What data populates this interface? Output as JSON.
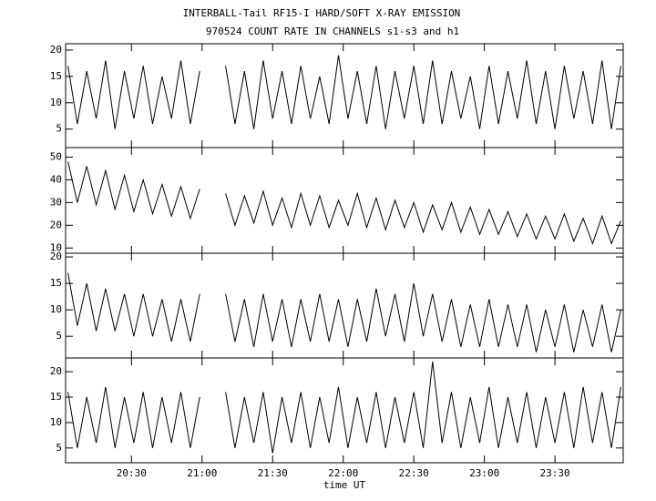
{
  "title": "INTERBALL-Tail RF15-I HARD/SOFT X-RAY EMISSION",
  "subtitle": "970524  COUNT RATE IN CHANNELS s1-s3 and h1",
  "xlabel": "time UT",
  "chart_data": [
    {
      "type": "line",
      "color": "#000000",
      "xlim": [
        1202,
        1439
      ],
      "ylim": [
        1.5,
        21.2
      ],
      "yticks": [
        5,
        10,
        15,
        20
      ],
      "x": [
        1203,
        1207,
        1211,
        1215,
        1219,
        1223,
        1227,
        1231,
        1235,
        1239,
        1243,
        1247,
        1251,
        1255,
        1259,
        1264,
        1270,
        1274,
        1278,
        1282,
        1286,
        1290,
        1294,
        1298,
        1302,
        1306,
        1310,
        1314,
        1318,
        1322,
        1326,
        1330,
        1334,
        1338,
        1342,
        1346,
        1350,
        1354,
        1358,
        1362,
        1366,
        1370,
        1374,
        1378,
        1382,
        1386,
        1390,
        1394,
        1398,
        1402,
        1406,
        1410,
        1414,
        1418,
        1422,
        1426,
        1430,
        1434,
        1438
      ],
      "values": [
        17,
        6,
        16,
        7,
        18,
        5,
        16,
        7,
        17,
        6,
        15,
        7,
        18,
        6,
        16,
        null,
        17,
        6,
        16,
        5,
        18,
        7,
        16,
        6,
        17,
        7,
        15,
        6,
        19,
        7,
        16,
        6,
        17,
        5,
        16,
        7,
        17,
        6,
        18,
        6,
        16,
        7,
        15,
        5,
        17,
        6,
        16,
        7,
        18,
        6,
        16,
        5,
        17,
        7,
        16,
        6,
        18,
        5,
        17
      ]
    },
    {
      "type": "line",
      "color": "#000000",
      "xlim": [
        1202,
        1439
      ],
      "ylim": [
        7.7,
        54.2
      ],
      "yticks": [
        10,
        20,
        30,
        40,
        50
      ],
      "x": [
        1203,
        1207,
        1211,
        1215,
        1219,
        1223,
        1227,
        1231,
        1235,
        1239,
        1243,
        1247,
        1251,
        1255,
        1259,
        1264,
        1270,
        1274,
        1278,
        1282,
        1286,
        1290,
        1294,
        1298,
        1302,
        1306,
        1310,
        1314,
        1318,
        1322,
        1326,
        1330,
        1334,
        1338,
        1342,
        1346,
        1350,
        1354,
        1358,
        1362,
        1366,
        1370,
        1374,
        1378,
        1382,
        1386,
        1390,
        1394,
        1398,
        1402,
        1406,
        1410,
        1414,
        1418,
        1422,
        1426,
        1430,
        1434,
        1438
      ],
      "values": [
        48,
        30,
        46,
        29,
        44,
        27,
        42,
        26,
        40,
        25,
        38,
        24,
        37,
        23,
        36,
        null,
        34,
        20,
        33,
        21,
        35,
        20,
        32,
        19,
        34,
        20,
        33,
        19,
        31,
        20,
        34,
        19,
        32,
        18,
        31,
        19,
        30,
        17,
        29,
        18,
        30,
        17,
        28,
        16,
        27,
        16,
        26,
        15,
        25,
        14,
        24,
        14,
        25,
        13,
        23,
        12,
        24,
        12,
        22
      ]
    },
    {
      "type": "line",
      "color": "#000000",
      "xlim": [
        1202,
        1439
      ],
      "ylim": [
        0.9,
        20.7
      ],
      "yticks": [
        5,
        10,
        15,
        20
      ],
      "x": [
        1203,
        1207,
        1211,
        1215,
        1219,
        1223,
        1227,
        1231,
        1235,
        1239,
        1243,
        1247,
        1251,
        1255,
        1259,
        1264,
        1270,
        1274,
        1278,
        1282,
        1286,
        1290,
        1294,
        1298,
        1302,
        1306,
        1310,
        1314,
        1318,
        1322,
        1326,
        1330,
        1334,
        1338,
        1342,
        1346,
        1350,
        1354,
        1358,
        1362,
        1366,
        1370,
        1374,
        1378,
        1382,
        1386,
        1390,
        1394,
        1398,
        1402,
        1406,
        1410,
        1414,
        1418,
        1422,
        1426,
        1430,
        1434,
        1438
      ],
      "values": [
        17,
        7,
        15,
        6,
        14,
        6,
        13,
        5,
        13,
        5,
        12,
        4,
        12,
        4,
        13,
        null,
        13,
        4,
        12,
        3,
        13,
        4,
        12,
        3,
        12,
        4,
        13,
        4,
        12,
        3,
        12,
        4,
        14,
        5,
        13,
        4,
        15,
        5,
        13,
        4,
        12,
        3,
        11,
        3,
        12,
        3,
        11,
        3,
        11,
        2,
        10,
        3,
        11,
        2,
        10,
        3,
        11,
        2,
        10
      ]
    },
    {
      "type": "line",
      "color": "#000000",
      "xlim": [
        1202,
        1439
      ],
      "ylim": [
        2.1,
        22.7
      ],
      "yticks": [
        5,
        10,
        15,
        20
      ],
      "xticks": [
        {
          "value": 1230,
          "label": "20:30"
        },
        {
          "value": 1260,
          "label": "21:00"
        },
        {
          "value": 1290,
          "label": "21:30"
        },
        {
          "value": 1320,
          "label": "22:00"
        },
        {
          "value": 1350,
          "label": "22:30"
        },
        {
          "value": 1380,
          "label": "23:00"
        },
        {
          "value": 1410,
          "label": "23:30"
        }
      ],
      "x": [
        1203,
        1207,
        1211,
        1215,
        1219,
        1223,
        1227,
        1231,
        1235,
        1239,
        1243,
        1247,
        1251,
        1255,
        1259,
        1264,
        1270,
        1274,
        1278,
        1282,
        1286,
        1290,
        1294,
        1298,
        1302,
        1306,
        1310,
        1314,
        1318,
        1322,
        1326,
        1330,
        1334,
        1338,
        1342,
        1346,
        1350,
        1354,
        1358,
        1362,
        1366,
        1370,
        1374,
        1378,
        1382,
        1386,
        1390,
        1394,
        1398,
        1402,
        1406,
        1410,
        1414,
        1418,
        1422,
        1426,
        1430,
        1434,
        1438
      ],
      "values": [
        16,
        5,
        15,
        6,
        17,
        5,
        15,
        6,
        16,
        5,
        15,
        6,
        16,
        5,
        15,
        null,
        16,
        5,
        15,
        6,
        16,
        4,
        15,
        6,
        16,
        5,
        15,
        6,
        17,
        5,
        15,
        6,
        16,
        5,
        15,
        6,
        16,
        5,
        22,
        6,
        16,
        5,
        15,
        6,
        17,
        5,
        15,
        6,
        16,
        5,
        15,
        6,
        16,
        5,
        17,
        6,
        16,
        5,
        17
      ]
    }
  ]
}
